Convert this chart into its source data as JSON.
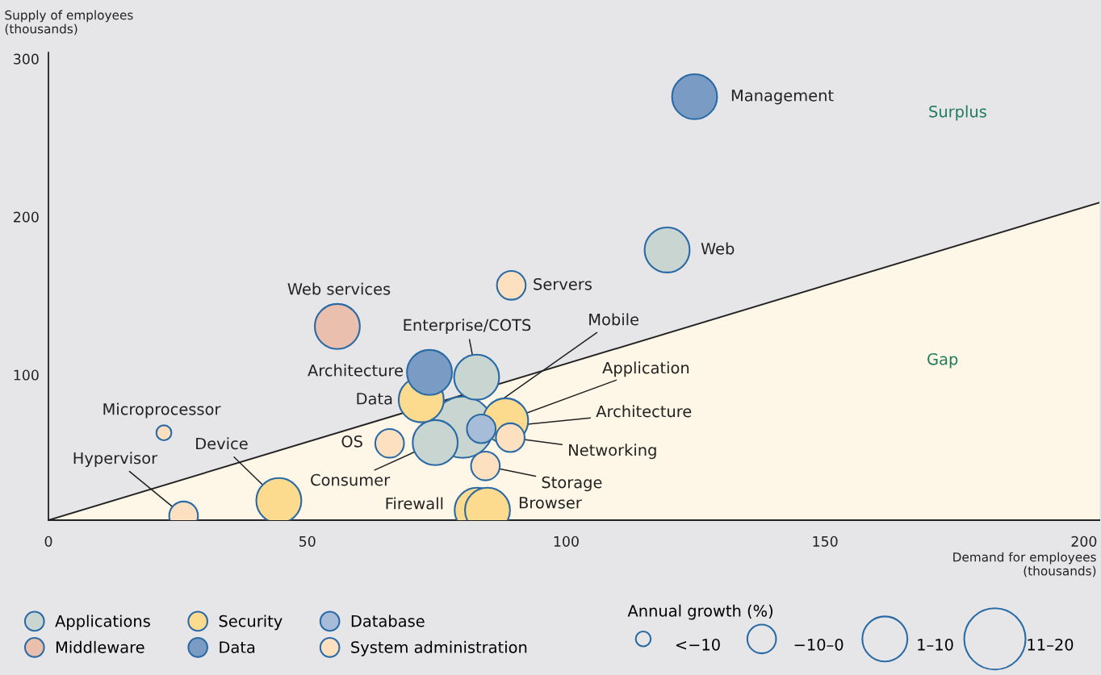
{
  "chart_data": {
    "type": "bubble",
    "xlabel": "Demand for employees\n(thousands)",
    "ylabel": "Supply of employees\n(thousands)",
    "xlim": [
      0,
      203
    ],
    "ylim": [
      8,
      304
    ],
    "xticks": [
      0,
      50,
      100,
      150,
      200
    ],
    "yticks": [
      100,
      200,
      300
    ],
    "grid": false,
    "legend": "bottom left",
    "legend_title": "Annual growth (%)",
    "size_legend": [
      {
        "value": 0.06,
        "label": "<−10"
      },
      {
        "value": 0.22,
        "label": "−10–0"
      },
      {
        "value": 0.54,
        "label": "1–10"
      },
      {
        "value": 1,
        "label": "11–20"
      }
    ],
    "series": [
      {
        "type": "area",
        "color": "#fef6e6",
        "x": [
          0,
          203
        ],
        "values": [
          8,
          209
        ]
      },
      {
        "name": "Applications",
        "color": "#c9d5d1",
        "x": [
          119.5,
          82.7,
          80,
          74.7
        ],
        "values": [
          179,
          98.5,
          66.8,
          57.1
        ],
        "sizes": [
          0.54,
          0.54,
          1,
          0.54
        ]
      },
      {
        "name": "Middleware",
        "color": "#ebbfad",
        "x": [
          55.8
        ],
        "values": [
          130.6
        ],
        "sizes": [
          0.54
        ]
      },
      {
        "name": "Security",
        "color": "#fddb8e",
        "x": [
          72,
          88.3,
          82.8,
          84.8,
          44.5
        ],
        "values": [
          84.2,
          70.9,
          14.3,
          14.3,
          20.4
        ],
        "sizes": [
          0.54,
          0.54,
          0.54,
          0.54,
          0.54
        ]
      },
      {
        "name": "Data",
        "color": "#7a9cc4",
        "x": [
          124.8,
          73.6
        ],
        "values": [
          276,
          101.5
        ],
        "sizes": [
          0.54,
          0.54
        ]
      },
      {
        "name": "Database",
        "color": "#a7bcd9",
        "x": [
          83.6
        ],
        "values": [
          65.8
        ],
        "sizes": [
          0.22
        ]
      },
      {
        "name": "System administration",
        "color": "#fde0c0",
        "x": [
          89.4,
          89.2,
          84.4,
          65.9,
          26.1,
          22.3
        ],
        "values": [
          156.6,
          60.2,
          42.3,
          56.6,
          10.7,
          63.3
        ],
        "sizes": [
          0.22,
          0.22,
          0.22,
          0.22,
          0.22,
          0.06
        ]
      }
    ],
    "annotations": [
      "Surplus",
      "Gap",
      "Management",
      "Web",
      "Servers",
      "Web services",
      "Architecture",
      "Data",
      "Browser",
      "Firewall",
      "OS",
      "Microprocessor",
      {
        "text": "Enterprise/COTS",
        "x": 82.7,
        "y": 98.5
      },
      {
        "text": "Mobile",
        "x": 80,
        "y": 66.8
      },
      {
        "text": "Application",
        "x": 88.3,
        "y": 70.9
      },
      {
        "text": "Architecture",
        "x": 83.6,
        "y": 65.8
      },
      {
        "text": "Networking",
        "x": 89.2,
        "y": 60.2
      },
      {
        "text": "Storage",
        "x": 84.4,
        "y": 42.3
      },
      {
        "text": "Consumer",
        "x": 74.7,
        "y": 57.1
      },
      {
        "text": "Device",
        "x": 44.5,
        "y": 20.4
      },
      {
        "text": "Hypervisor",
        "x": 26.1,
        "y": 10.7
      }
    ]
  }
}
